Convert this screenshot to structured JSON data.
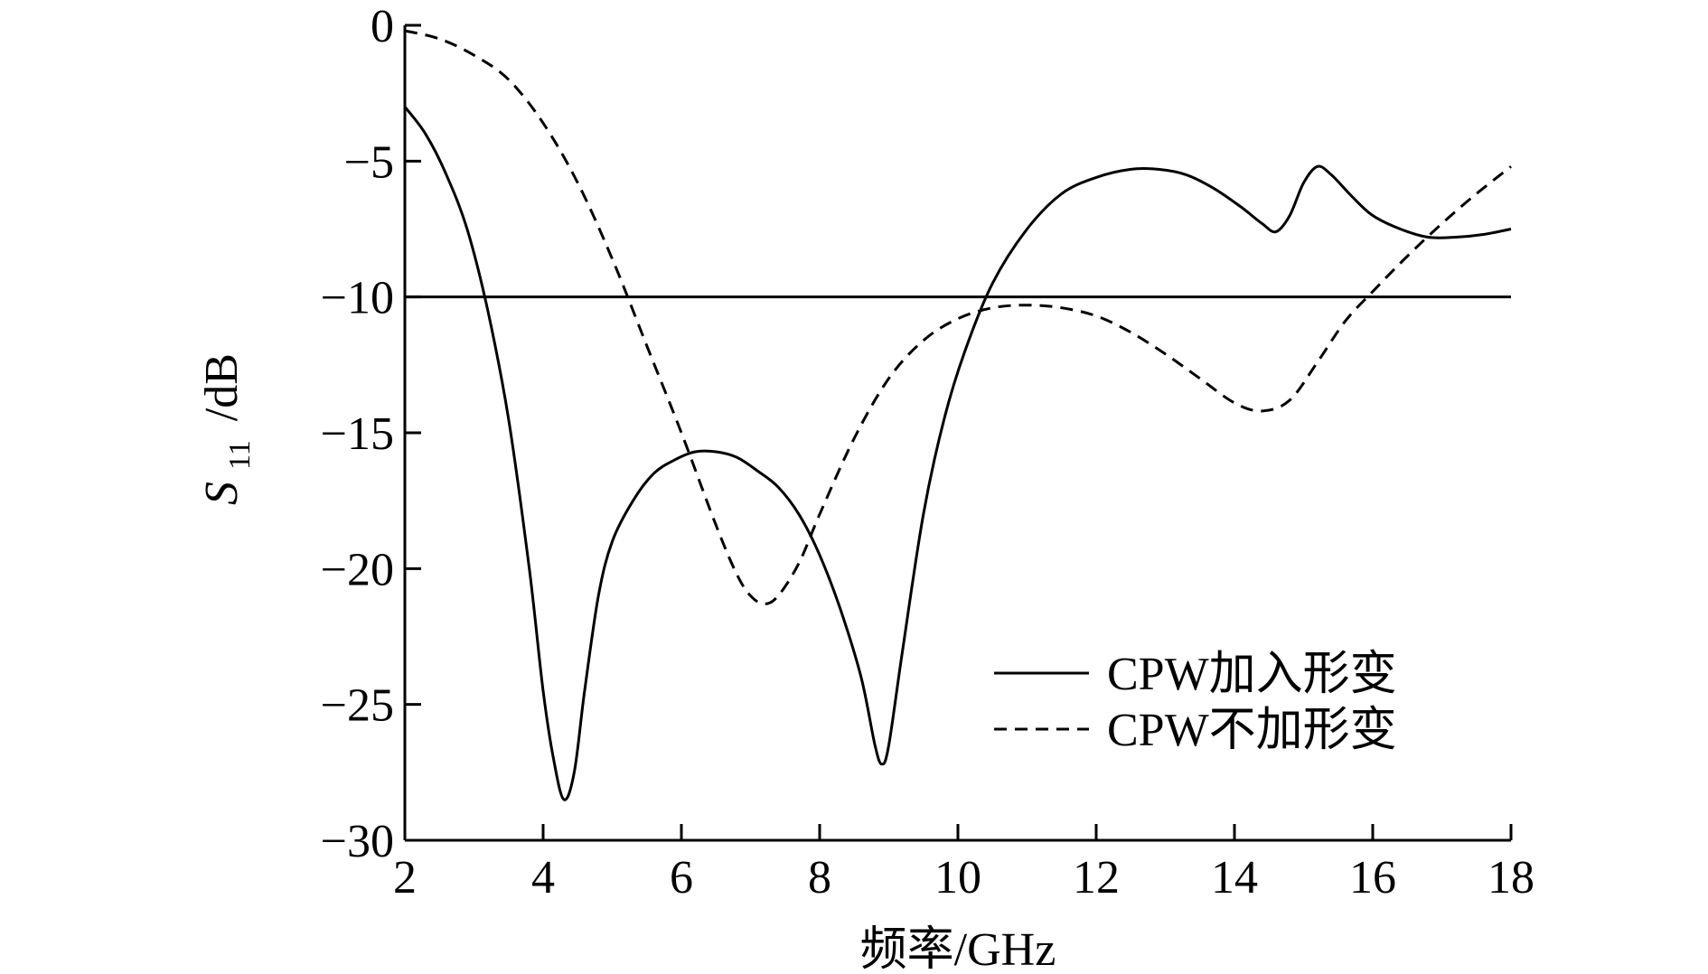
{
  "chart_data": {
    "type": "line",
    "title": "",
    "xlabel": "频率/GHz",
    "ylabel": {
      "symbol": "S",
      "subscript": "11",
      "unit": "/dB"
    },
    "xlim": [
      2,
      18
    ],
    "ylim": [
      -30,
      0
    ],
    "xticks": [
      2,
      4,
      6,
      8,
      10,
      12,
      14,
      16,
      18
    ],
    "yticks": [
      0,
      -5,
      -10,
      -15,
      -20,
      -25,
      -30
    ],
    "ytick_labels": [
      "0",
      "−5",
      "−10",
      "−15",
      "−20",
      "−25",
      "−30"
    ],
    "grid": false,
    "legend_position": "lower-right",
    "reference_lines": [
      {
        "y": -10,
        "style": "solid"
      }
    ],
    "series": [
      {
        "name": "CPW加入形变",
        "style": "solid",
        "x": [
          2,
          2.3,
          2.6,
          2.9,
          3.2,
          3.5,
          3.8,
          4.0,
          4.15,
          4.3,
          4.45,
          4.6,
          4.8,
          5.0,
          5.3,
          5.6,
          5.9,
          6.2,
          6.5,
          6.8,
          7.1,
          7.4,
          7.7,
          8.0,
          8.3,
          8.6,
          8.8,
          8.9,
          9.0,
          9.2,
          9.5,
          9.8,
          10.1,
          10.5,
          11.0,
          11.5,
          12.0,
          12.5,
          12.9,
          13.3,
          13.7,
          14.1,
          14.4,
          14.6,
          14.8,
          15.0,
          15.2,
          15.4,
          15.7,
          16.0,
          16.4,
          16.8,
          17.2,
          17.6,
          18.0
        ],
        "y": [
          -3.0,
          -4.0,
          -5.5,
          -7.5,
          -10.5,
          -14.5,
          -20.0,
          -24.5,
          -27.0,
          -28.5,
          -27.5,
          -24.5,
          -21.0,
          -19.0,
          -17.5,
          -16.5,
          -16.0,
          -15.7,
          -15.7,
          -15.9,
          -16.4,
          -17.0,
          -18.0,
          -19.5,
          -21.5,
          -24.0,
          -26.5,
          -27.2,
          -26.5,
          -23.0,
          -18.0,
          -14.5,
          -12.0,
          -9.5,
          -7.5,
          -6.2,
          -5.6,
          -5.3,
          -5.3,
          -5.5,
          -6.0,
          -6.7,
          -7.3,
          -7.6,
          -7.0,
          -5.8,
          -5.2,
          -5.5,
          -6.3,
          -7.0,
          -7.5,
          -7.8,
          -7.8,
          -7.7,
          -7.5
        ]
      },
      {
        "name": "CPW不加形变",
        "style": "dashed",
        "x": [
          2,
          2.5,
          3.0,
          3.5,
          4.0,
          4.5,
          5.0,
          5.5,
          6.0,
          6.5,
          6.8,
          7.0,
          7.2,
          7.4,
          7.7,
          8.0,
          8.5,
          9.0,
          9.5,
          10.0,
          10.5,
          11.0,
          11.5,
          12.0,
          12.5,
          13.0,
          13.5,
          14.0,
          14.4,
          14.8,
          15.2,
          15.6,
          16.0,
          16.5,
          17.0,
          17.5,
          18.0
        ],
        "y": [
          -0.2,
          -0.5,
          -1.1,
          -2.0,
          -3.6,
          -5.8,
          -8.6,
          -11.8,
          -15.0,
          -18.4,
          -20.2,
          -21.0,
          -21.3,
          -21.0,
          -19.8,
          -18.0,
          -15.2,
          -13.0,
          -11.6,
          -10.8,
          -10.4,
          -10.3,
          -10.4,
          -10.7,
          -11.3,
          -12.1,
          -13.0,
          -13.9,
          -14.2,
          -13.8,
          -12.4,
          -10.9,
          -9.8,
          -8.5,
          -7.3,
          -6.2,
          -5.2
        ]
      }
    ]
  }
}
